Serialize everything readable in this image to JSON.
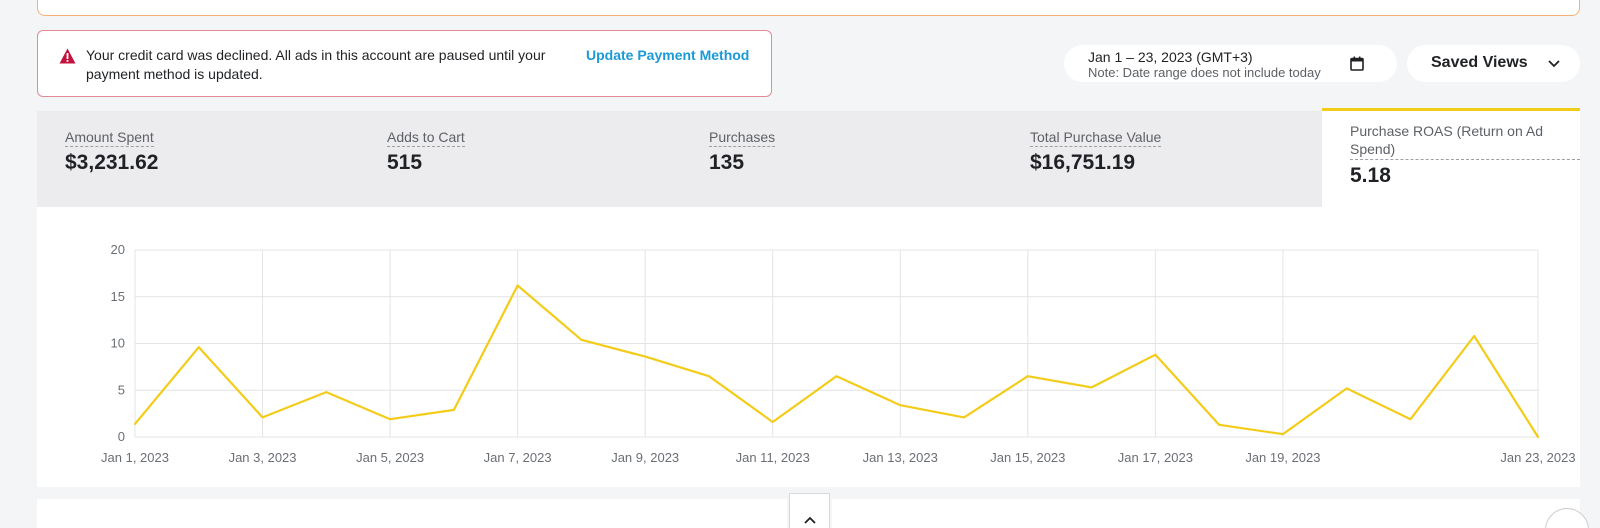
{
  "alert": {
    "message": "Your credit card was declined. All ads in this account are paused until your payment method is updated.",
    "action_label": "Update Payment Method",
    "icon": "warning-icon",
    "color": "#c4123f"
  },
  "date_range": {
    "label": "Jan 1 – 23, 2023 (GMT+3)",
    "note": "Note: Date range does not include today",
    "icon": "calendar-icon"
  },
  "saved_views": {
    "label": "Saved Views",
    "icon": "chevron-down-icon"
  },
  "metrics": [
    {
      "label": "Amount Spent",
      "value": "$3,231.62"
    },
    {
      "label": "Adds to Cart",
      "value": "515"
    },
    {
      "label": "Purchases",
      "value": "135"
    },
    {
      "label": "Total Purchase Value",
      "value": "$16,751.19"
    },
    {
      "label": "Purchase ROAS (Return on Ad Spend)",
      "value": "5.18",
      "selected": true
    }
  ],
  "colors": {
    "accent": "#f3cc1a",
    "link": "#1a9ad6",
    "alert_border": "#e38a98"
  },
  "chart_data": {
    "type": "line",
    "ylim": [
      0,
      20
    ],
    "yticks": [
      "0",
      "5",
      "10",
      "15",
      "20"
    ],
    "xtick_labels": [
      "Jan 1, 2023",
      "Jan 3, 2023",
      "Jan 5, 2023",
      "Jan 7, 2023",
      "Jan 9, 2023",
      "Jan 11, 2023",
      "Jan 13, 2023",
      "Jan 15, 2023",
      "Jan 17, 2023",
      "Jan 19, 2023",
      "Jan 23, 2023"
    ],
    "xtick_days": [
      1,
      3,
      5,
      7,
      9,
      11,
      13,
      15,
      17,
      19,
      23
    ],
    "grid": true,
    "series": [
      {
        "color": "#f3cc1a",
        "x": [
          "Jan 1, 2023",
          "Jan 2, 2023",
          "Jan 3, 2023",
          "Jan 4, 2023",
          "Jan 5, 2023",
          "Jan 6, 2023",
          "Jan 7, 2023",
          "Jan 8, 2023",
          "Jan 9, 2023",
          "Jan 10, 2023",
          "Jan 11, 2023",
          "Jan 12, 2023",
          "Jan 13, 2023",
          "Jan 14, 2023",
          "Jan 15, 2023",
          "Jan 16, 2023",
          "Jan 17, 2023",
          "Jan 18, 2023",
          "Jan 19, 2023",
          "Jan 20, 2023",
          "Jan 21, 2023",
          "Jan 22, 2023",
          "Jan 23, 2023"
        ],
        "values": [
          1.4,
          9.6,
          2.1,
          4.8,
          1.9,
          2.9,
          16.2,
          10.4,
          8.6,
          6.5,
          1.6,
          6.5,
          3.4,
          2.1,
          6.5,
          5.3,
          8.8,
          1.3,
          0.3,
          5.2,
          1.9,
          10.8,
          0.0
        ]
      }
    ]
  }
}
